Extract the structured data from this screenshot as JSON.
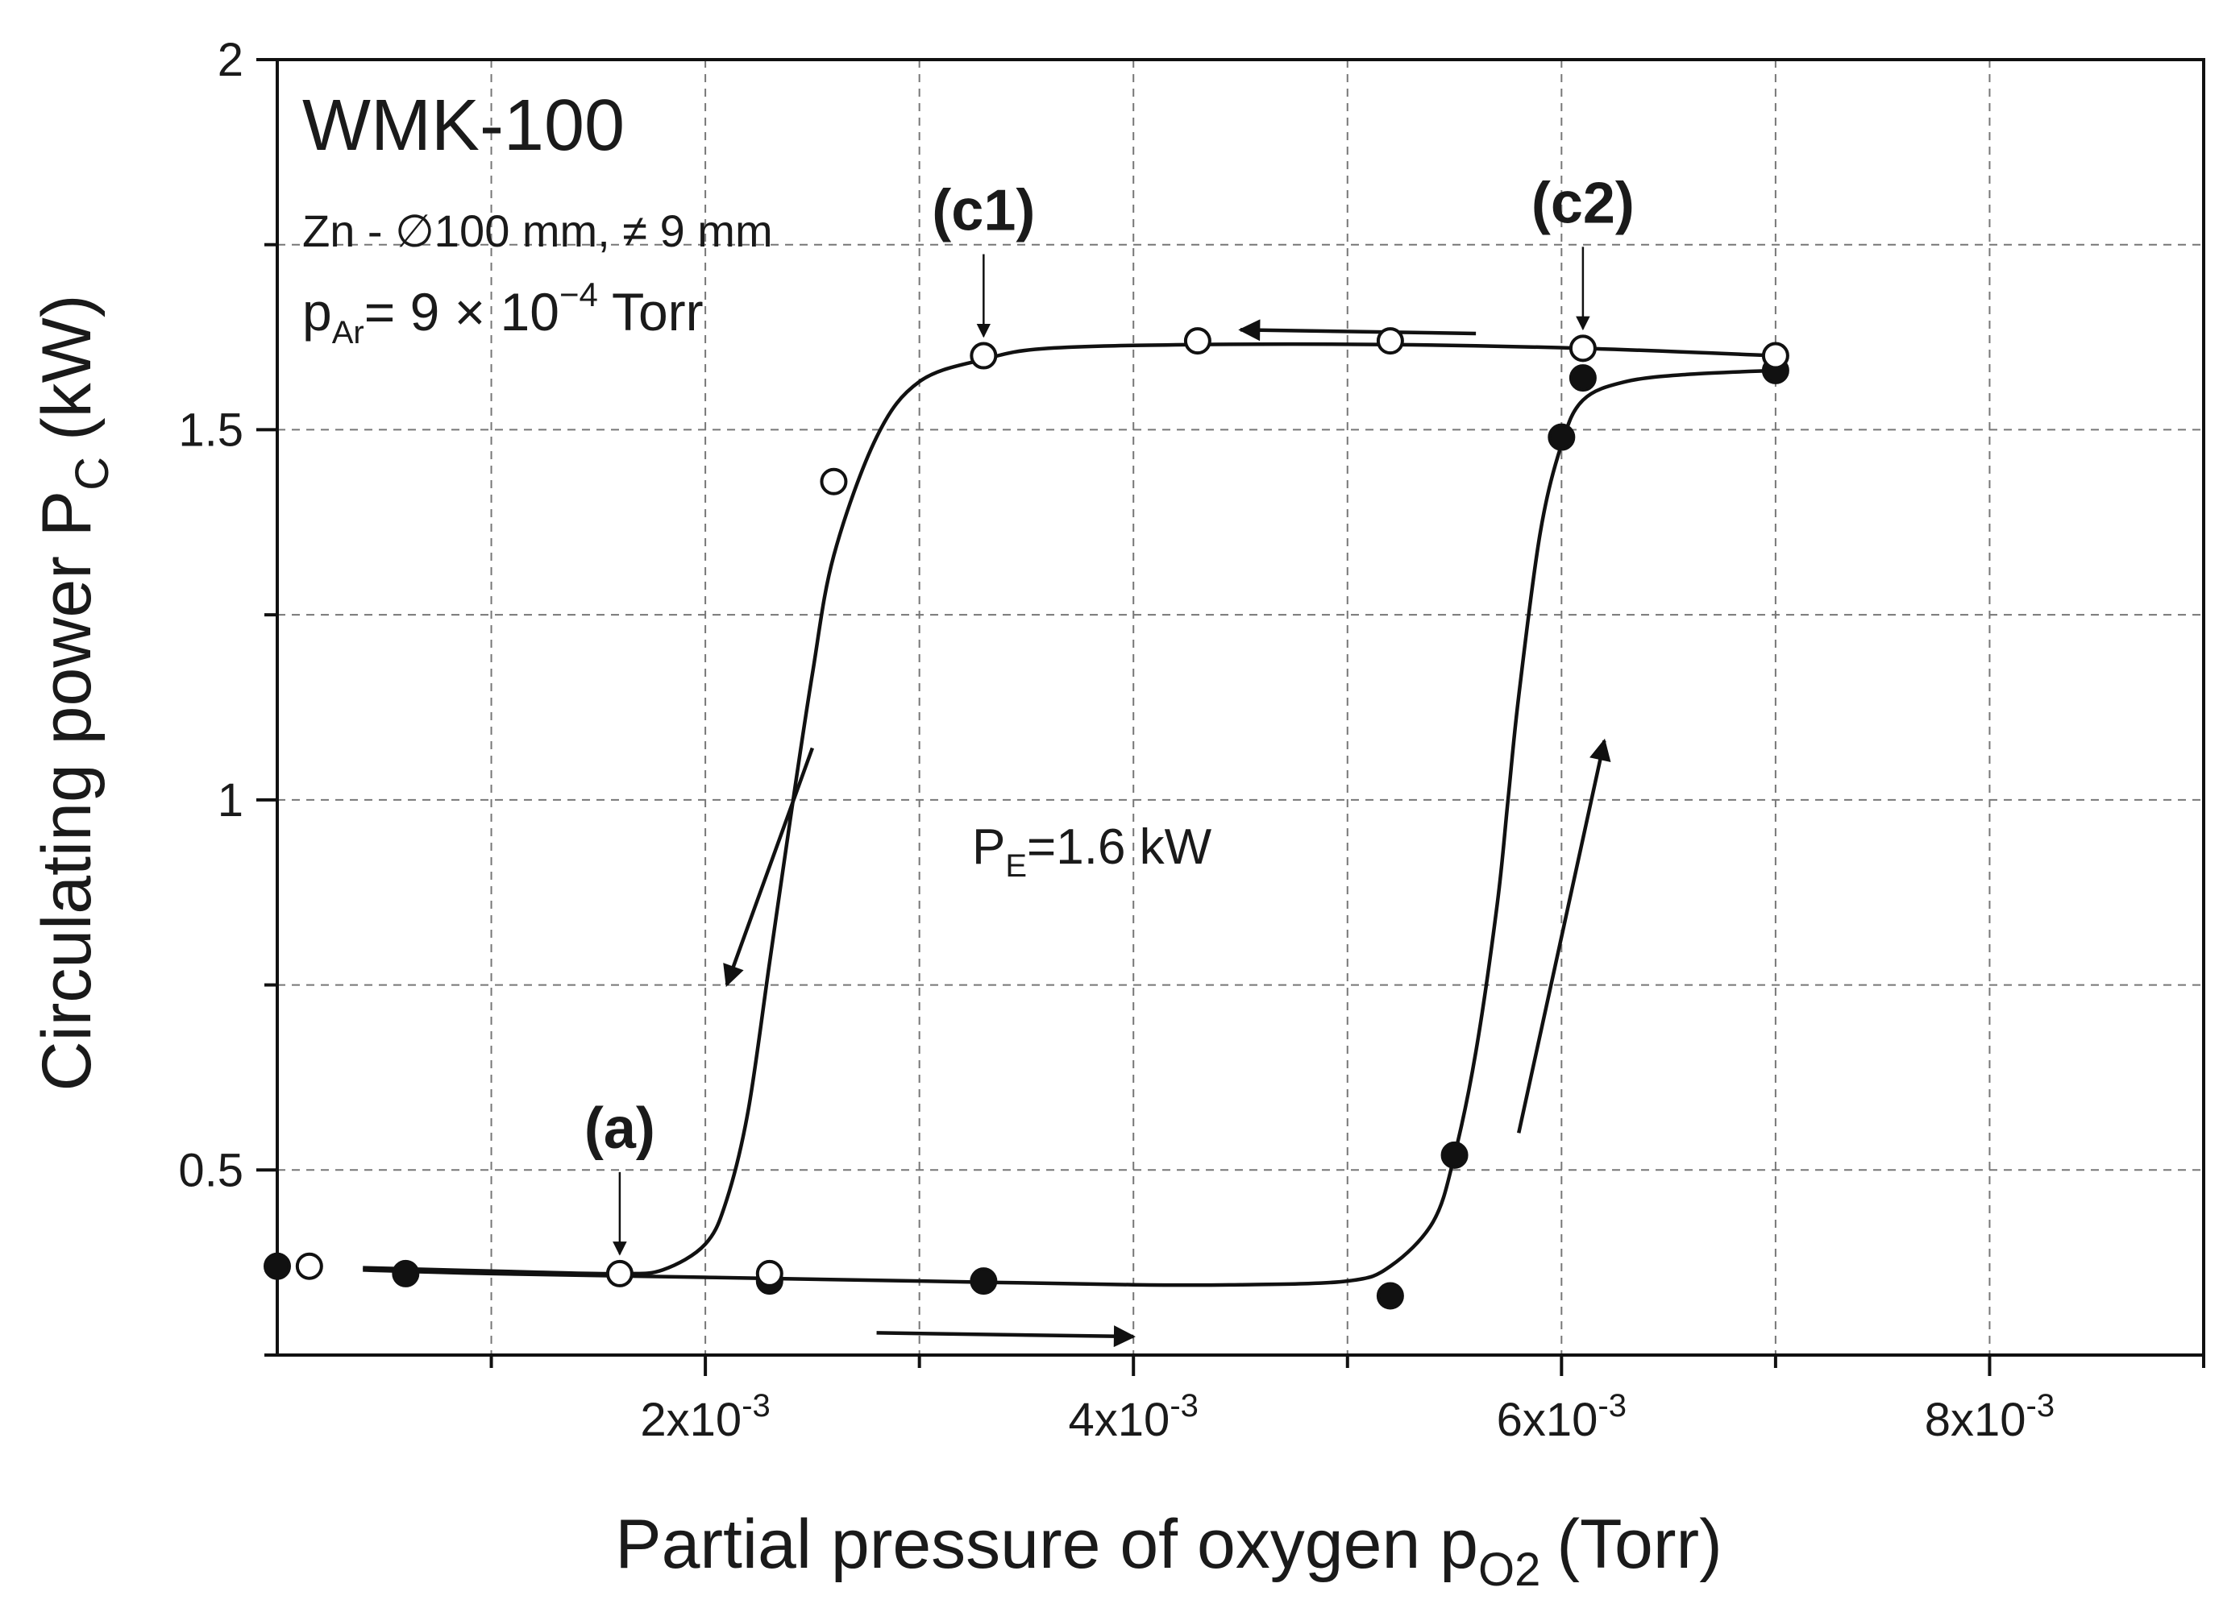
{
  "chart_data": {
    "type": "scatter",
    "title": "",
    "xlabel": "Partial pressure of oxygen p",
    "xlabel_sub": "O2",
    "xlabel_unit": "(Torr)",
    "ylabel": "Circulating power P",
    "ylabel_sub": "C",
    "ylabel_unit": "(kW)",
    "xlim": [
      0,
      0.009
    ],
    "ylim": [
      0.25,
      2.0
    ],
    "x_ticks": [
      {
        "value": 0.002,
        "mantissa": "2x10",
        "exponent": "-3"
      },
      {
        "value": 0.004,
        "mantissa": "4x10",
        "exponent": "-3"
      },
      {
        "value": 0.006,
        "mantissa": "6x10",
        "exponent": "-3"
      },
      {
        "value": 0.008,
        "mantissa": "8x10",
        "exponent": "-3"
      }
    ],
    "x_minor_ticks": [
      0.001,
      0.003,
      0.005,
      0.007,
      0.009
    ],
    "y_ticks": [
      {
        "value": 0.5,
        "label": "0.5"
      },
      {
        "value": 1.0,
        "label": "1"
      },
      {
        "value": 1.5,
        "label": "1.5"
      },
      {
        "value": 2.0,
        "label": "2"
      }
    ],
    "y_minor_ticks": [
      0.25,
      0.75,
      1.25,
      1.75
    ],
    "grid": true,
    "series": [
      {
        "marker": "filled-circle",
        "color": "#111111",
        "points": [
          {
            "x": 0.0,
            "y": 0.37
          },
          {
            "x": 0.0006,
            "y": 0.36
          },
          {
            "x": 0.0023,
            "y": 0.35
          },
          {
            "x": 0.0033,
            "y": 0.35
          },
          {
            "x": 0.0052,
            "y": 0.33
          },
          {
            "x": 0.0055,
            "y": 0.52
          },
          {
            "x": 0.006,
            "y": 1.49
          },
          {
            "x": 0.0061,
            "y": 1.57
          },
          {
            "x": 0.007,
            "y": 1.58
          }
        ],
        "fit_curve": [
          [
            0.0004,
            0.365
          ],
          [
            0.001,
            0.36
          ],
          [
            0.002,
            0.355
          ],
          [
            0.003,
            0.35
          ],
          [
            0.004,
            0.345
          ],
          [
            0.0045,
            0.345
          ],
          [
            0.005,
            0.35
          ],
          [
            0.0052,
            0.37
          ],
          [
            0.0054,
            0.43
          ],
          [
            0.0055,
            0.52
          ],
          [
            0.0056,
            0.66
          ],
          [
            0.0057,
            0.86
          ],
          [
            0.00575,
            1.0
          ],
          [
            0.0058,
            1.14
          ],
          [
            0.0059,
            1.36
          ],
          [
            0.006,
            1.48
          ],
          [
            0.0061,
            1.54
          ],
          [
            0.0063,
            1.565
          ],
          [
            0.0066,
            1.575
          ],
          [
            0.007,
            1.58
          ]
        ]
      },
      {
        "marker": "open-circle",
        "color": "#111111",
        "points": [
          {
            "x": 0.00015,
            "y": 0.37
          },
          {
            "x": 0.0016,
            "y": 0.36
          },
          {
            "x": 0.0023,
            "y": 0.36
          },
          {
            "x": 0.0026,
            "y": 1.43
          },
          {
            "x": 0.0033,
            "y": 1.6
          },
          {
            "x": 0.0043,
            "y": 1.62
          },
          {
            "x": 0.0052,
            "y": 1.62
          },
          {
            "x": 0.0061,
            "y": 1.61
          },
          {
            "x": 0.007,
            "y": 1.6
          }
        ],
        "fit_curve": [
          [
            0.007,
            1.6
          ],
          [
            0.0061,
            1.61
          ],
          [
            0.0052,
            1.615
          ],
          [
            0.0043,
            1.615
          ],
          [
            0.0036,
            1.61
          ],
          [
            0.0033,
            1.595
          ],
          [
            0.003,
            1.565
          ],
          [
            0.0028,
            1.49
          ],
          [
            0.0026,
            1.33
          ],
          [
            0.0025,
            1.17
          ],
          [
            0.0024,
            0.98
          ],
          [
            0.0023,
            0.78
          ],
          [
            0.0022,
            0.58
          ],
          [
            0.0021,
            0.46
          ],
          [
            0.002,
            0.4
          ],
          [
            0.0018,
            0.365
          ],
          [
            0.0016,
            0.36
          ],
          [
            0.0012,
            0.362
          ],
          [
            0.0004,
            0.368
          ]
        ]
      }
    ],
    "annotations": {
      "system": "WMK-100",
      "target_text": "Zn - ∅100 mm, ≠ 9 mm",
      "argon_prefix": "p",
      "argon_sub": "Ar",
      "argon_value": "= 9 × 10",
      "argon_exp": "−4",
      "argon_unit": " Torr",
      "power_prefix": "P",
      "power_sub": "E",
      "power_value": "=1.6 kW",
      "point_a": {
        "label": "(a)",
        "x": 0.0016,
        "y": 0.36
      },
      "point_c1": {
        "label": "(c1)",
        "x": 0.0033,
        "y": 1.6
      },
      "point_c2": {
        "label": "(c2)",
        "x": 0.0061,
        "y": 1.61
      }
    },
    "direction_arrows": [
      {
        "from": [
          0.0056,
          1.63
        ],
        "to": [
          0.0045,
          1.635
        ]
      },
      {
        "from": [
          0.0025,
          1.07
        ],
        "to": [
          0.0021,
          0.75
        ]
      },
      {
        "from": [
          0.0028,
          0.28
        ],
        "to": [
          0.004,
          0.275
        ]
      },
      {
        "from": [
          0.0058,
          0.55
        ],
        "to": [
          0.0062,
          1.08
        ]
      }
    ]
  }
}
